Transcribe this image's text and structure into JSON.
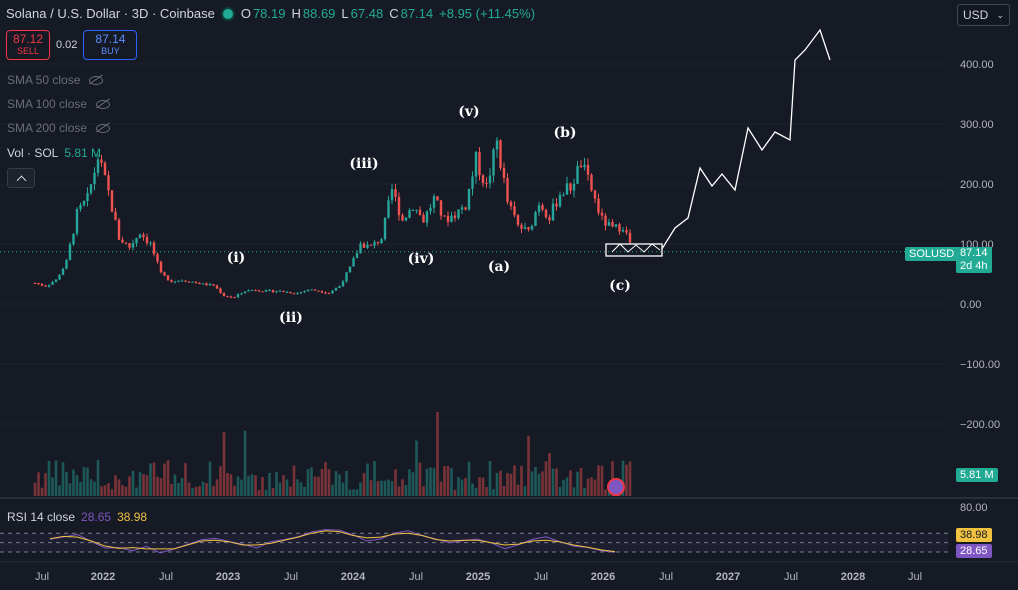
{
  "header": {
    "symbol": "Solana / U.S. Dollar · 3D · Coinbase",
    "open_k": "O",
    "open": "78.19",
    "high_k": "H",
    "high": "88.69",
    "low_k": "L",
    "low": "67.48",
    "close_k": "C",
    "close": "87.14",
    "change": "+8.95 (+11.45%)"
  },
  "trade": {
    "sell_price": "87.12",
    "sell_label": "SELL",
    "spread": "0.02",
    "buy_price": "87.14",
    "buy_label": "BUY"
  },
  "indicators": [
    "SMA 50 close",
    "SMA 100 close",
    "SMA 200 close"
  ],
  "volume": {
    "label": "Vol · SOL",
    "value": "5.81 M"
  },
  "currency": "USD",
  "price_tag": {
    "symbol": "SOLUSD",
    "price": "87.14",
    "countdown": "2d 4h"
  },
  "volume_tag": "5.81 M",
  "rsi": {
    "label": "RSI 14 close",
    "value": "28.65",
    "ma_value": "38.98"
  },
  "colors": {
    "up": "#26a69a",
    "down": "#ef5350",
    "background": "#161a25",
    "rsi": "#7e57c2",
    "rsi_ma": "#f0c240",
    "price_line": "#22ab94"
  },
  "chart_data": {
    "type": "candlestick",
    "yaxis": {
      "ticks": [
        400,
        300,
        200,
        100,
        0,
        -100,
        -200
      ],
      "tick_labels": [
        "400.00",
        "300.00",
        "200.00",
        "100.00",
        "0.00",
        "−100.00",
        "−200.00"
      ],
      "ylim": [
        -300,
        480
      ]
    },
    "xaxis": {
      "tick_labels": [
        "Jul",
        "2022",
        "Jul",
        "2023",
        "Jul",
        "2024",
        "Jul",
        "2025",
        "Jul",
        "2026",
        "Jul",
        "2027",
        "Jul",
        "2028",
        "Jul"
      ],
      "xlim": [
        "2021-04",
        "2028-12"
      ]
    },
    "price_series": [
      [
        "2021-05",
        35
      ],
      [
        "2021-06",
        30
      ],
      [
        "2021-07",
        40
      ],
      [
        "2021-08",
        70
      ],
      [
        "2021-09",
        150
      ],
      [
        "2021-10",
        175
      ],
      [
        "2021-11",
        245
      ],
      [
        "2021-12",
        185
      ],
      [
        "2022-01",
        110
      ],
      [
        "2022-02",
        95
      ],
      [
        "2022-03",
        120
      ],
      [
        "2022-04",
        100
      ],
      [
        "2022-05",
        50
      ],
      [
        "2022-06",
        38
      ],
      [
        "2022-07",
        40
      ],
      [
        "2022-08",
        37
      ],
      [
        "2022-09",
        33
      ],
      [
        "2022-10",
        31
      ],
      [
        "2022-11",
        14
      ],
      [
        "2022-12",
        11
      ],
      [
        "2023-01",
        22
      ],
      [
        "2023-02",
        24
      ],
      [
        "2023-03",
        21
      ],
      [
        "2023-04",
        22
      ],
      [
        "2023-05",
        20
      ],
      [
        "2023-06",
        18
      ],
      [
        "2023-07",
        24
      ],
      [
        "2023-08",
        22
      ],
      [
        "2023-09",
        19
      ],
      [
        "2023-10",
        30
      ],
      [
        "2023-11",
        60
      ],
      [
        "2023-12",
        100
      ],
      [
        "2024-01",
        95
      ],
      [
        "2024-02",
        110
      ],
      [
        "2024-03",
        190
      ],
      [
        "2024-04",
        140
      ],
      [
        "2024-05",
        165
      ],
      [
        "2024-06",
        140
      ],
      [
        "2024-07",
        175
      ],
      [
        "2024-08",
        140
      ],
      [
        "2024-09",
        150
      ],
      [
        "2024-10",
        165
      ],
      [
        "2024-11",
        240
      ],
      [
        "2024-12",
        195
      ],
      [
        "2025-01",
        270
      ],
      [
        "2025-02",
        170
      ],
      [
        "2025-03",
        130
      ],
      [
        "2025-04",
        120
      ],
      [
        "2025-05",
        170
      ],
      [
        "2025-06",
        145
      ],
      [
        "2025-07",
        185
      ],
      [
        "2025-08",
        195
      ],
      [
        "2025-09",
        235
      ],
      [
        "2025-10",
        190
      ],
      [
        "2025-11",
        140
      ],
      [
        "2025-12",
        125
      ],
      [
        "2026-01",
        130
      ],
      [
        "2026-02",
        87.14
      ]
    ],
    "wave_labels": [
      "(i)",
      "(ii)",
      "(iii)",
      "(iv)",
      "(v)",
      "(a)",
      "(b)",
      "(c)"
    ],
    "drawing": {
      "type": "projection",
      "points": [
        [
          "2026-03",
          95
        ],
        [
          "2026-06",
          150
        ],
        [
          "2026-09",
          220
        ],
        [
          "2026-12",
          195
        ],
        [
          "2027-03",
          300
        ],
        [
          "2027-06",
          270
        ],
        [
          "2027-09",
          440
        ],
        [
          "2027-11",
          415
        ]
      ]
    },
    "rsi_series": [
      55,
      65,
      70,
      50,
      40,
      38,
      35,
      45,
      30,
      35,
      45,
      55,
      60,
      50,
      45,
      40,
      50,
      55,
      60,
      70,
      80,
      75,
      65,
      55,
      60,
      70,
      75,
      65,
      55,
      50,
      55,
      60,
      50,
      40,
      45,
      55,
      60,
      50,
      45,
      40,
      35,
      28.65
    ],
    "rsi_levels": [
      70,
      50,
      30
    ]
  }
}
